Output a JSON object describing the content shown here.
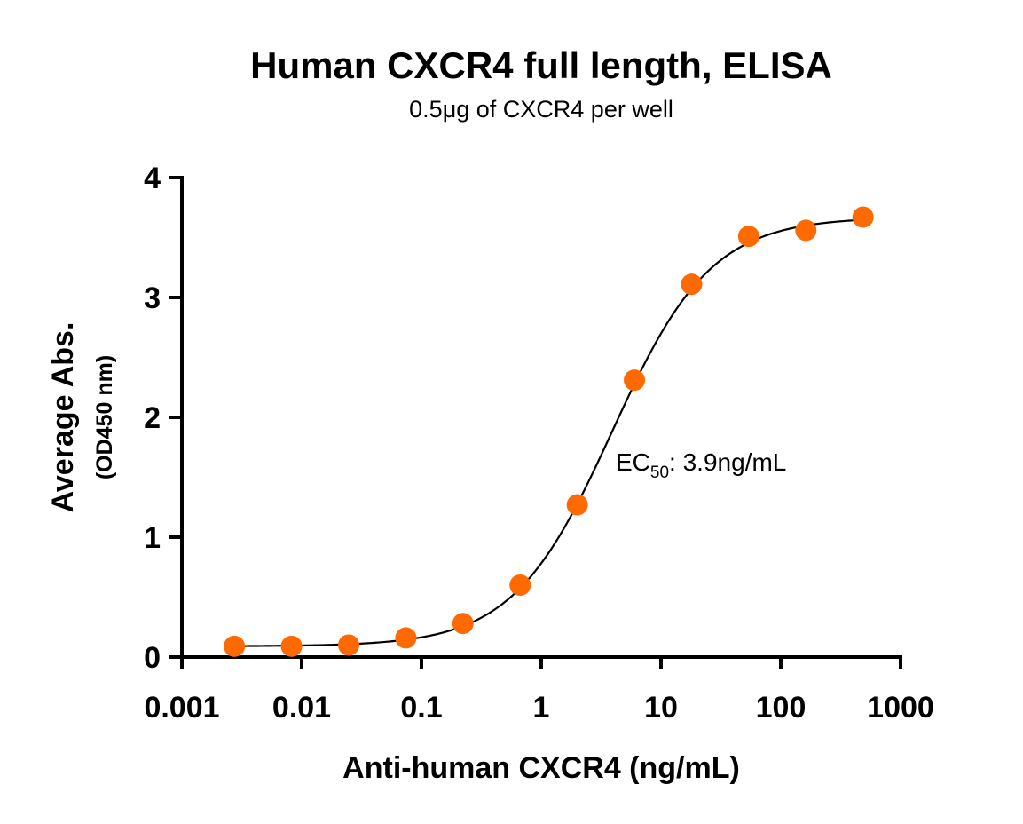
{
  "chart_data": {
    "type": "scatter",
    "title": "Human CXCR4 full length, ELISA",
    "subtitle": "0.5μg of CXCR4 per well",
    "xlabel": "Anti-human CXCR4 (ng/mL)",
    "ylabel": "Average Abs.",
    "ylabel_sub": "(OD450 nm)",
    "x_scale": "log",
    "xlim": [
      0.001,
      1000
    ],
    "ylim": [
      0,
      4
    ],
    "x_ticks": [
      0.001,
      0.01,
      0.1,
      1,
      10,
      100,
      1000
    ],
    "x_tick_labels": [
      "0.001",
      "0.01",
      "0.1",
      "1",
      "10",
      "100",
      "1000"
    ],
    "y_ticks": [
      0,
      1,
      2,
      3,
      4
    ],
    "y_tick_labels": [
      "0",
      "1",
      "2",
      "3",
      "4"
    ],
    "grid": false,
    "series": [
      {
        "color": "#FF6A00",
        "x": [
          0.00274,
          0.00823,
          0.0247,
          0.0741,
          0.222,
          0.667,
          2,
          6,
          18,
          54,
          162,
          486
        ],
        "y": [
          0.09,
          0.09,
          0.1,
          0.16,
          0.28,
          0.6,
          1.27,
          2.31,
          3.11,
          3.51,
          3.56,
          3.67
        ]
      }
    ],
    "fit_curve": {
      "model": "4PL",
      "bottom": 0.09,
      "top": 3.67,
      "ec50": 3.9,
      "hill": 1.05,
      "color": "#000000"
    },
    "annotations": [
      {
        "text_main": "EC",
        "text_sub": "50",
        "text_rest": ": 3.9ng/mL"
      }
    ]
  }
}
